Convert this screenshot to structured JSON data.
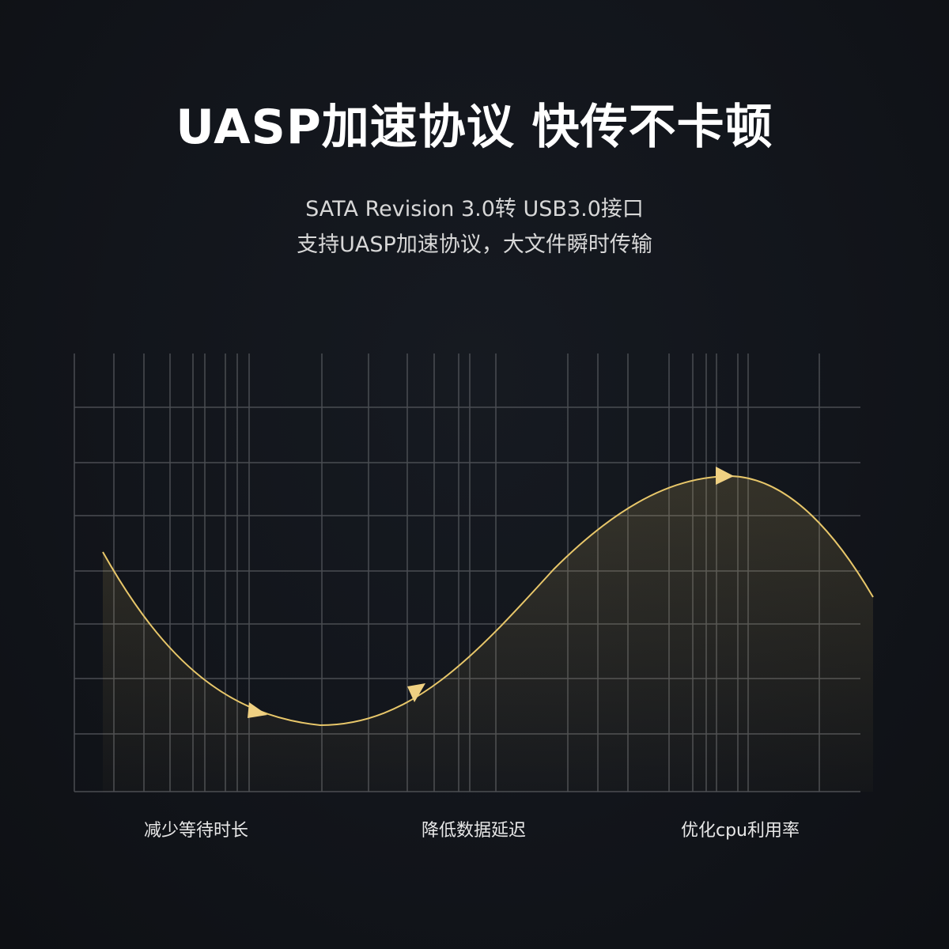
{
  "headline": "UASP加速协议  快传不卡顿",
  "subtitle_lines": [
    "SATA Revision 3.0转 USB3.0接口",
    "支持UASP加速协议，大文件瞬时传输"
  ],
  "labels": [
    "减少等待时长",
    "降低数据延迟",
    "优化cpu利用率"
  ],
  "colors": {
    "curve": "#e8c76a",
    "grid": "#4a4d52",
    "background": "#13161c"
  }
}
